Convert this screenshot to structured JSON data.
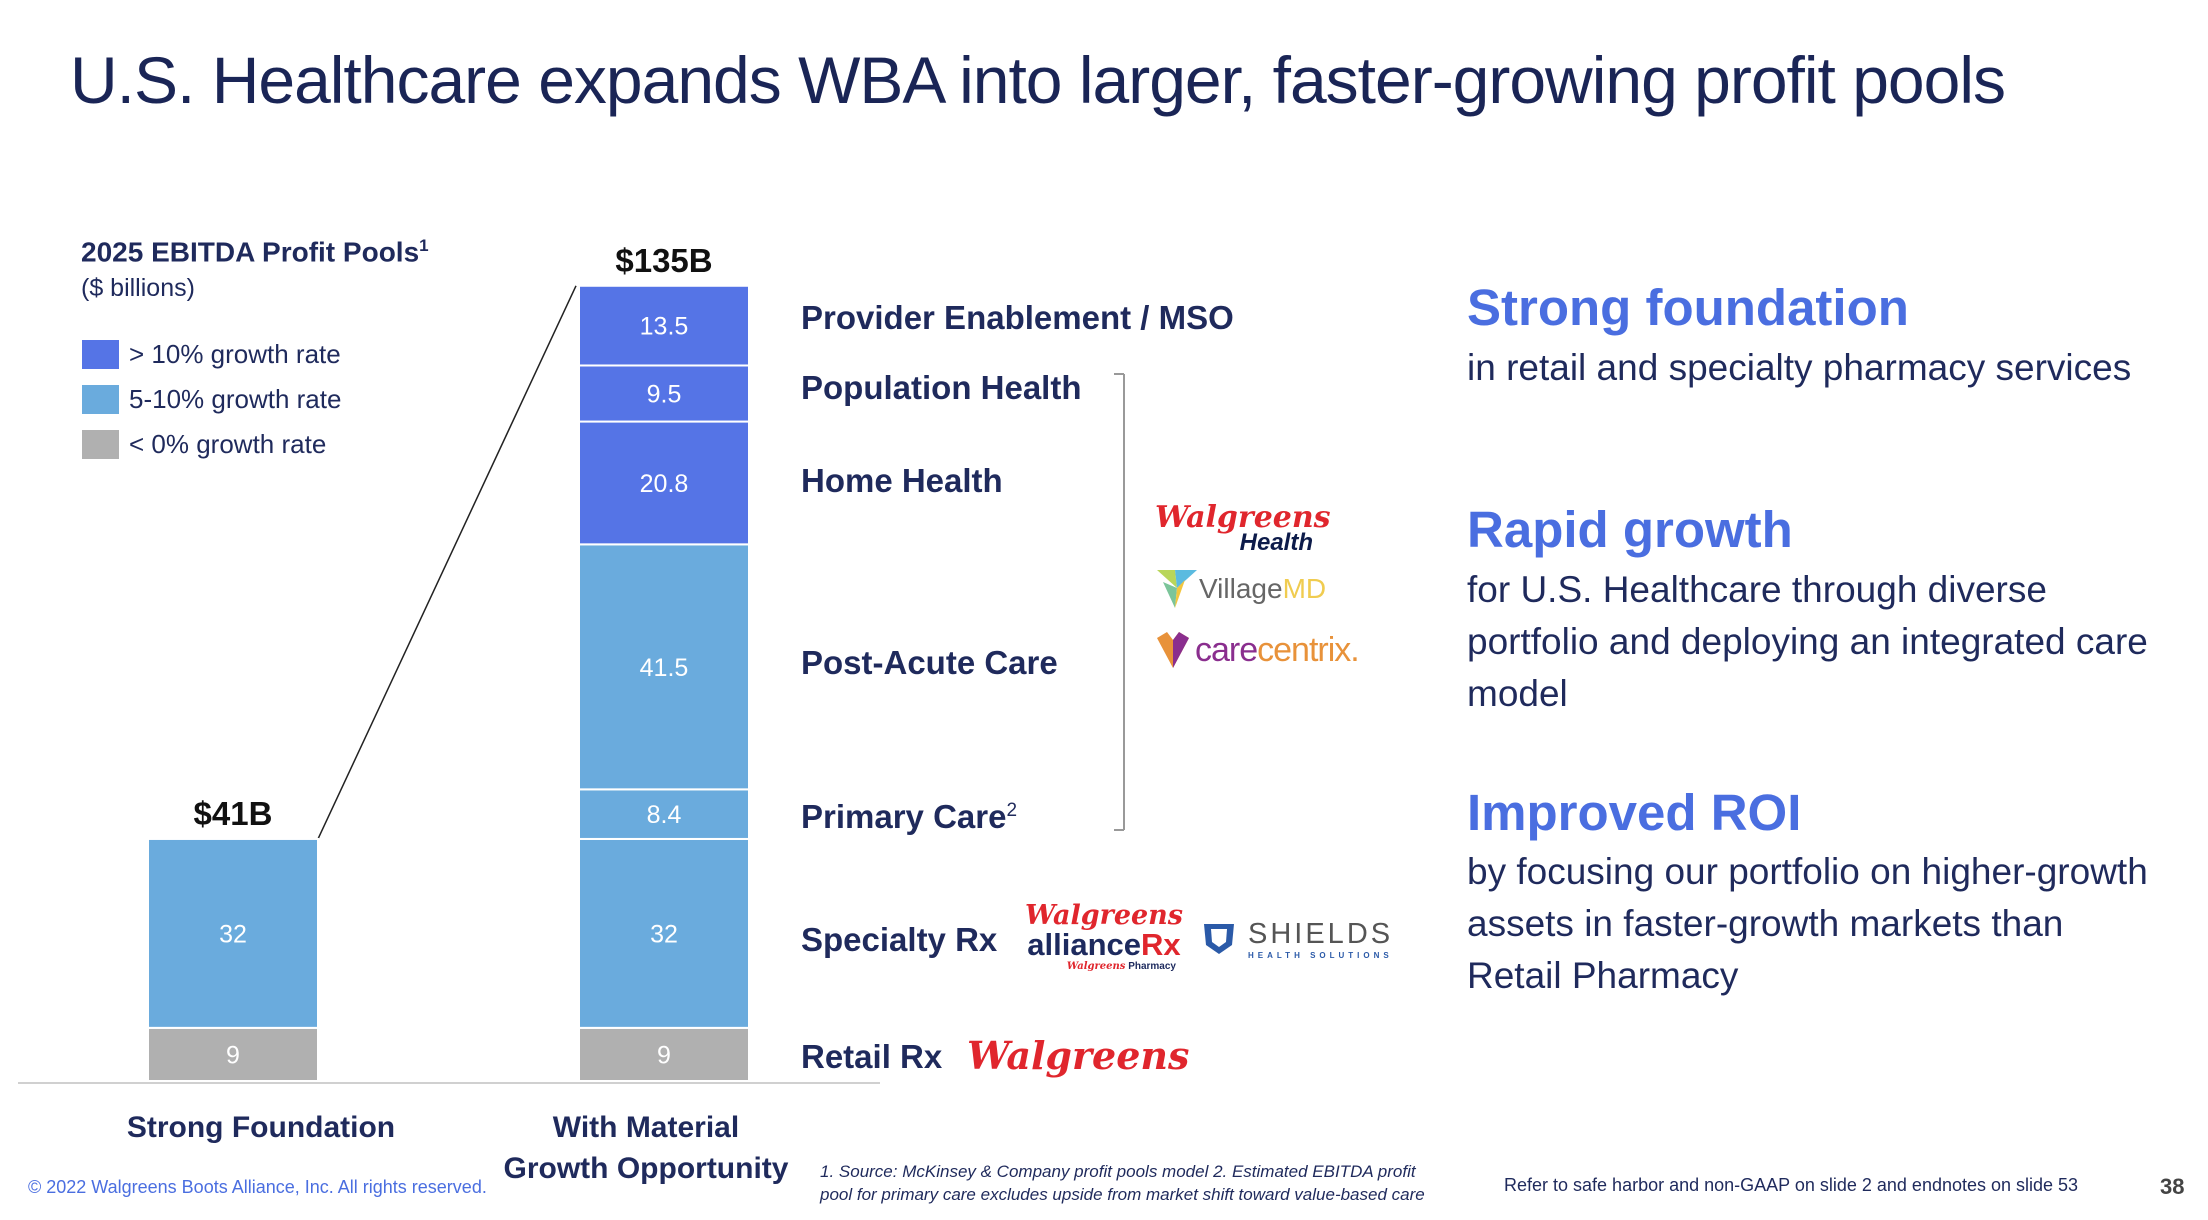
{
  "title": "U.S. Healthcare expands WBA into larger, faster-growing profit pools",
  "chart_data": {
    "type": "bar",
    "stacked": true,
    "title": "2025 EBITDA Profit Pools",
    "title_footnote": "1",
    "unit": "($ billions)",
    "legend": [
      {
        "label": "> 10% growth rate",
        "color": "#5574e6",
        "key": "high"
      },
      {
        "label": "5-10% growth rate",
        "color": "#6aabdd",
        "key": "mid"
      },
      {
        "label": "< 0% growth rate",
        "color": "#b0b0b0",
        "key": "neg"
      }
    ],
    "legend_position": "top-left",
    "grid": false,
    "ylim": [
      0,
      135
    ],
    "categories": [
      "Strong Foundation",
      "With Material Growth Opportunity"
    ],
    "totals": [
      "$41B",
      "$135B"
    ],
    "segments": [
      {
        "name": "Retail Rx",
        "growth": "neg",
        "values": [
          9,
          9
        ]
      },
      {
        "name": "Specialty Rx",
        "growth": "mid",
        "values": [
          32,
          32
        ]
      },
      {
        "name": "Primary Care",
        "footnote": "2",
        "growth": "mid",
        "values": [
          null,
          8.4
        ]
      },
      {
        "name": "Post-Acute Care",
        "growth": "mid",
        "values": [
          null,
          41.5
        ]
      },
      {
        "name": "Home Health",
        "growth": "high",
        "values": [
          null,
          20.8
        ]
      },
      {
        "name": "Population Health",
        "growth": "high",
        "values": [
          null,
          9.5
        ]
      },
      {
        "name": "Provider Enablement / MSO",
        "growth": "high",
        "values": [
          null,
          13.5
        ]
      }
    ]
  },
  "xlabels": {
    "bar1": "Strong Foundation",
    "bar2_line1": "With Material",
    "bar2_line2": "Growth Opportunity"
  },
  "logos": {
    "walgreens_health": {
      "script": "Walgreens",
      "sub": "Health"
    },
    "villagemd": {
      "village": "Village",
      "md": "MD"
    },
    "carecentrix": {
      "care": "care",
      "centrix": "centrix."
    },
    "alliancerx": {
      "script": "Walgreens",
      "alliance": "alliance",
      "rx": "Rx",
      "sub_script": "Walgreens",
      "sub": "Pharmacy"
    },
    "shields": {
      "name": "SHIELDS",
      "sub": "HEALTH SOLUTIONS"
    },
    "walgreens": {
      "script": "Walgreens"
    }
  },
  "right": {
    "blocks": [
      {
        "heading": "Strong foundation",
        "body": "in retail and specialty pharmacy services"
      },
      {
        "heading": "Rapid growth",
        "body": "for U.S. Healthcare through diverse portfolio and deploying an integrated care model"
      },
      {
        "heading": "Improved ROI",
        "body": "by focusing our portfolio on higher-growth assets in faster-growth markets than Retail Pharmacy"
      }
    ]
  },
  "footer": {
    "footnote": "1. Source: McKinsey & Company profit pools model   2. Estimated EBITDA profit pool for primary care excludes upside from market shift toward value-based care",
    "copyright": "© 2022 Walgreens Boots Alliance, Inc. All rights reserved.",
    "refer": "Refer to safe harbor and non-GAAP on slide 2 and endnotes on slide 53",
    "page": "38"
  }
}
